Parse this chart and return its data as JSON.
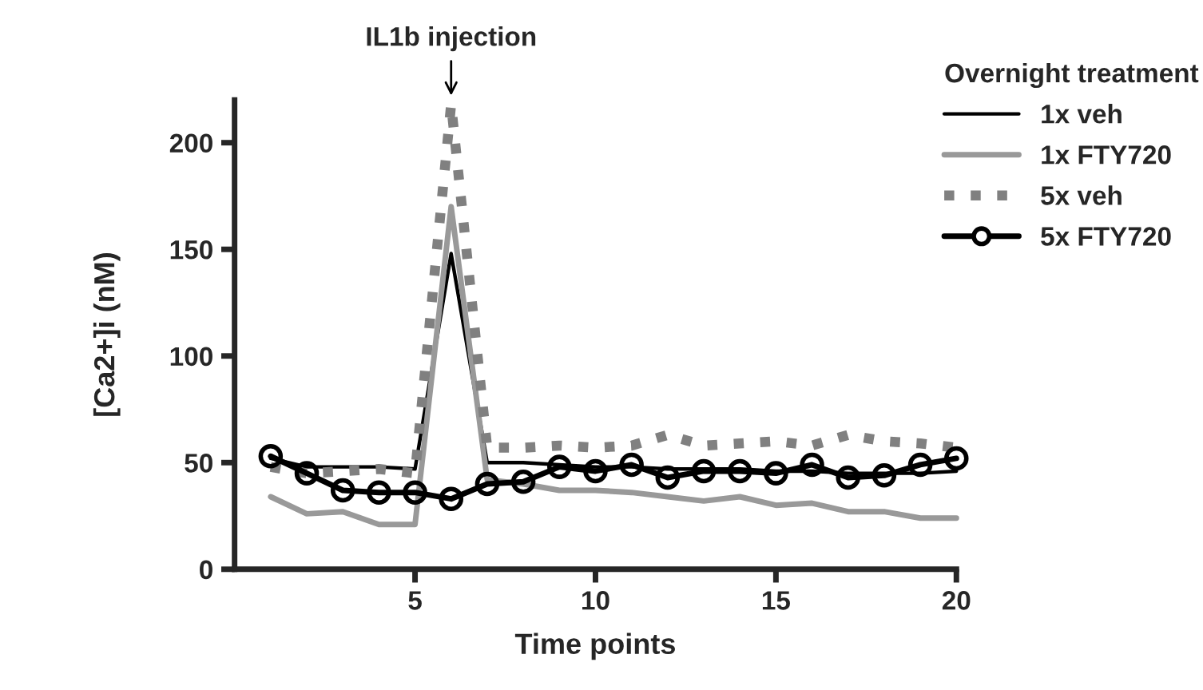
{
  "chart_data": {
    "type": "line",
    "xlabel": "Time points",
    "ylabel": "[Ca2+]i (nM)",
    "legend_title": "Overnight treatment",
    "legend": "top right",
    "grid": false,
    "x": [
      1,
      2,
      3,
      4,
      5,
      6,
      7,
      8,
      9,
      10,
      11,
      12,
      13,
      14,
      15,
      16,
      17,
      18,
      19,
      20
    ],
    "xlim": [
      0,
      20
    ],
    "xticks": [
      5,
      10,
      15,
      20
    ],
    "ylim": [
      0,
      220
    ],
    "yticks": [
      0,
      50,
      100,
      150,
      200
    ],
    "annotations": [
      "IL1b injection"
    ],
    "series": [
      {
        "name": "1x veh",
        "color": "#000000",
        "line_style": "solid",
        "marker": "none",
        "values": [
          52,
          48,
          48,
          48,
          47,
          148,
          50,
          50,
          49,
          48,
          48,
          47,
          47,
          47,
          46,
          46,
          45,
          45,
          45,
          46
        ]
      },
      {
        "name": "1x FTY720",
        "color": "#999999",
        "line_style": "solid",
        "marker": "none",
        "values": [
          34,
          26,
          27,
          21,
          21,
          170,
          42,
          40,
          37,
          37,
          36,
          34,
          32,
          34,
          30,
          31,
          27,
          27,
          24,
          24
        ]
      },
      {
        "name": "5x veh",
        "color": "#808080",
        "line_style": "dotted",
        "marker": "none",
        "values": [
          48,
          45,
          46,
          47,
          45,
          218,
          57,
          57,
          58,
          57,
          58,
          63,
          58,
          59,
          60,
          58,
          63,
          60,
          59,
          57
        ]
      },
      {
        "name": "5x FTY720",
        "color": "#000000",
        "line_style": "solid",
        "marker": "circle",
        "values": [
          53,
          45,
          37,
          36,
          36,
          33,
          40,
          41,
          48,
          46,
          49,
          43,
          46,
          46,
          45,
          49,
          43,
          44,
          49,
          52
        ]
      }
    ]
  }
}
